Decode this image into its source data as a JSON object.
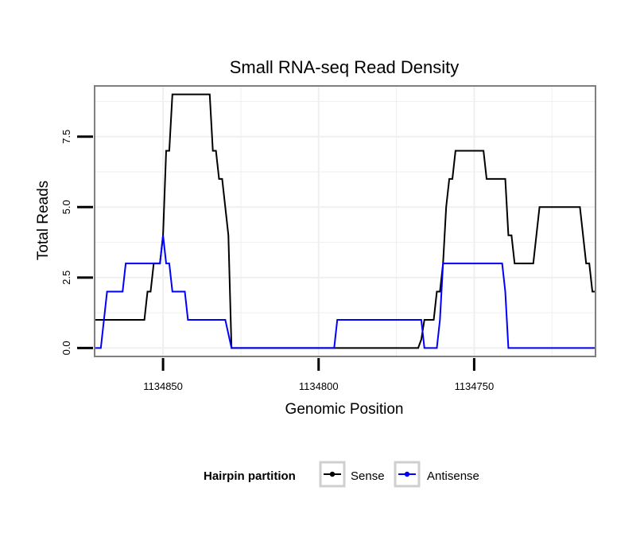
{
  "chart_data": {
    "type": "line",
    "title": "Small RNA-seq Read Density",
    "xlabel": "Genomic Position",
    "ylabel": "Total Reads",
    "x_reversed": true,
    "xlim": [
      1134872,
      1134711
    ],
    "ylim": [
      -0.3,
      9.3
    ],
    "x_ticks": [
      {
        "value": 1134850,
        "label": "1134850"
      },
      {
        "value": 1134800,
        "label": "1134800"
      },
      {
        "value": 1134750,
        "label": "1134750"
      }
    ],
    "y_ticks": [
      {
        "value": 0,
        "label": "0.0"
      },
      {
        "value": 2.5,
        "label": "2.5"
      },
      {
        "value": 5,
        "label": "5.0"
      },
      {
        "value": 7.5,
        "label": "7.5"
      }
    ],
    "grid": true,
    "legend": {
      "title": "Hairpin partition",
      "placement": "bottom",
      "entries": [
        "Sense",
        "Antisense"
      ]
    },
    "series": [
      {
        "name": "Sense",
        "color": "#000000",
        "points": [
          [
            1134872,
            1
          ],
          [
            1134856,
            1
          ],
          [
            1134855,
            2
          ],
          [
            1134854,
            2
          ],
          [
            1134853,
            3
          ],
          [
            1134851,
            3
          ],
          [
            1134850,
            4
          ],
          [
            1134849,
            7
          ],
          [
            1134848,
            7
          ],
          [
            1134847,
            9
          ],
          [
            1134835,
            9
          ],
          [
            1134834,
            7
          ],
          [
            1134833,
            7
          ],
          [
            1134832,
            6
          ],
          [
            1134831,
            6
          ],
          [
            1134829,
            4
          ],
          [
            1134828,
            0
          ],
          [
            1134768,
            0
          ],
          [
            1134767,
            0.3
          ],
          [
            1134766,
            1
          ],
          [
            1134763,
            1
          ],
          [
            1134762,
            2
          ],
          [
            1134761,
            2
          ],
          [
            1134760,
            3
          ],
          [
            1134759,
            5
          ],
          [
            1134758,
            6
          ],
          [
            1134757,
            6
          ],
          [
            1134756,
            7
          ],
          [
            1134747,
            7
          ],
          [
            1134746,
            6
          ],
          [
            1134740,
            6
          ],
          [
            1134739,
            4
          ],
          [
            1134738,
            4
          ],
          [
            1134737,
            3
          ],
          [
            1134731,
            3
          ],
          [
            1134729,
            5
          ],
          [
            1134716,
            5
          ],
          [
            1134714,
            3
          ],
          [
            1134713,
            3
          ],
          [
            1134712,
            2
          ],
          [
            1134711,
            2
          ]
        ]
      },
      {
        "name": "Antisense",
        "color": "#0000ff",
        "points": [
          [
            1134872,
            0
          ],
          [
            1134870,
            0
          ],
          [
            1134868,
            2
          ],
          [
            1134863,
            2
          ],
          [
            1134862,
            3
          ],
          [
            1134851,
            3
          ],
          [
            1134850,
            4
          ],
          [
            1134849,
            3
          ],
          [
            1134848,
            3
          ],
          [
            1134847,
            2
          ],
          [
            1134843,
            2
          ],
          [
            1134842,
            1
          ],
          [
            1134830,
            1
          ],
          [
            1134828,
            0
          ],
          [
            1134795,
            0
          ],
          [
            1134794,
            1
          ],
          [
            1134767,
            1
          ],
          [
            1134766,
            0
          ],
          [
            1134762,
            0
          ],
          [
            1134761,
            1
          ],
          [
            1134760,
            3
          ],
          [
            1134741,
            3
          ],
          [
            1134740,
            2
          ],
          [
            1134739,
            0
          ],
          [
            1134711,
            0
          ]
        ]
      }
    ]
  }
}
